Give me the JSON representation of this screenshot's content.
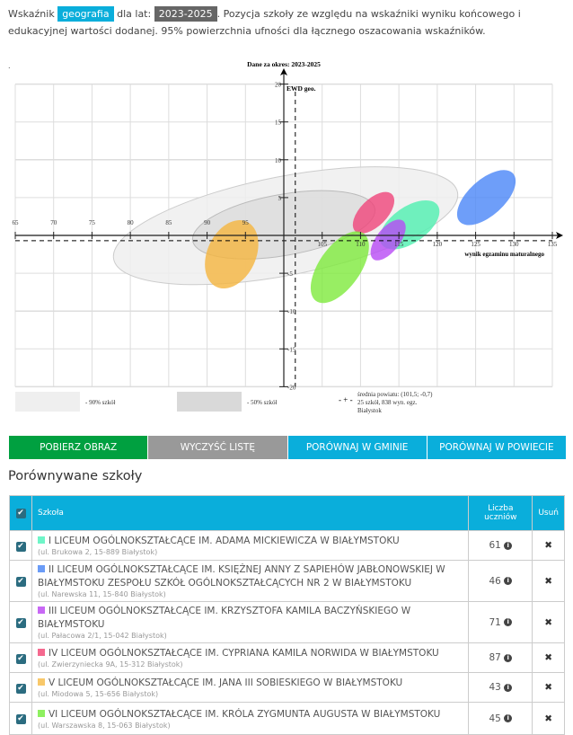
{
  "intro": {
    "p1": "Wskaźnik",
    "subject": "geografia",
    "p2": "dla lat:",
    "years": "2023-2025",
    "p3": ". Pozycja szkoły ze względu na wskaźniki wyniku końcowego i edukacyjnej wartości dodanej. 95% powierzchnia ufności dla łącznego oszacowania wskaźników.",
    "dot": "."
  },
  "chart_data": {
    "type": "scatter",
    "title": "Dane za okres: 2023-2025",
    "xlabel": "wynik egzaminu maturalnego",
    "ylabel": "EWD geo.",
    "xlim": [
      65,
      135
    ],
    "ylim": [
      -20,
      20
    ],
    "xticks": [
      "65",
      "70",
      "75",
      "80",
      "85",
      "90",
      "95",
      "105",
      "110",
      "115",
      "120",
      "125",
      "130",
      "135"
    ],
    "yticks": [
      "20",
      "15",
      "10",
      "5",
      "-5",
      "-10",
      "-15",
      "-20"
    ],
    "grid": true,
    "mean": {
      "x": 101.5,
      "y": -0.7
    },
    "bands": [
      {
        "name": "- 90% szkół",
        "x": 100,
        "y": 1.4,
        "color": "#efefef"
      },
      {
        "name": "- 50% szkół",
        "x": 100,
        "y": 1.4,
        "color": "#d9d9d9"
      }
    ],
    "legend_mean": [
      "średnia powiatu: (101,5; -0,7)",
      "25 szkół, 838 wyn. egz.",
      "Białystok"
    ],
    "series": [
      {
        "school": "I",
        "x": 116.4,
        "y": 1.4,
        "color": "#4ff0b0"
      },
      {
        "school": "II",
        "x": 126.4,
        "y": 5.0,
        "color": "#4a86f7"
      },
      {
        "school": "III",
        "x": 113.6,
        "y": -0.6,
        "color": "#b84af5"
      },
      {
        "school": "IV",
        "x": 111.7,
        "y": 3.0,
        "color": "#f0457a"
      },
      {
        "school": "V",
        "x": 93.2,
        "y": -2.5,
        "color": "#f5b53e"
      },
      {
        "school": "VI",
        "x": 107.3,
        "y": -4.2,
        "color": "#7eea3c"
      }
    ]
  },
  "buttons": [
    {
      "label": "POBIERZ OBRAZ",
      "color": "#00a040"
    },
    {
      "label": "WYCZYŚĆ LISTĘ",
      "color": "#999999"
    },
    {
      "label": "PORÓWNAJ W GMINIE",
      "color": "#0aaedb"
    },
    {
      "label": "PORÓWNAJ W POWIECIE",
      "color": "#0aaedb"
    }
  ],
  "compare": {
    "title": "Porównywane szkoły",
    "col_school": "Szkoła",
    "col_count": "Liczba uczniów",
    "col_remove": "Usuń",
    "rows": [
      {
        "name": "I LICEUM OGÓLNOKSZTAŁCĄCE IM. ADAMA MICKIEWICZA W BIAŁYMSTOKU",
        "addr": "(ul. Brukowa 2, 15-889 Białystok)",
        "count": "61",
        "color": "#6ff5c8"
      },
      {
        "name": "II LICEUM OGÓLNOKSZTAŁCĄCE IM. KSIĘŻNEJ ANNY Z SAPIEHÓW JABŁONOWSKIEJ W BIAŁYMSTOKU ZESPOŁU SZKÓŁ OGÓLNOKSZTAŁCĄCYCH NR 2 W BIAŁYMSTOKU",
        "addr": "(ul. Narewska 11, 15-840 Białystok)",
        "count": "46",
        "color": "#6b9cf7"
      },
      {
        "name": "III LICEUM OGÓLNOKSZTAŁCĄCE IM. KRZYSZTOFA KAMILA BACZYŃSKIEGO W BIAŁYMSTOKU",
        "addr": "(ul. Pałacowa 2/1, 15-042 Białystok)",
        "count": "71",
        "color": "#c868f5"
      },
      {
        "name": "IV LICEUM OGÓLNOKSZTAŁCĄCE IM. CYPRIANA KAMILA NORWIDA W BIAŁYMSTOKU",
        "addr": "(ul. Zwierzyniecka 9A, 15-312 Białystok)",
        "count": "87",
        "color": "#f5698f"
      },
      {
        "name": "V LICEUM OGÓLNOKSZTAŁCĄCE IM. JANA III SOBIESKIEGO W BIAŁYMSTOKU",
        "addr": "(ul. Miodowa 5, 15-656 Białystok)",
        "count": "43",
        "color": "#f8c86a"
      },
      {
        "name": "VI LICEUM OGÓLNOKSZTAŁCĄCE IM. KRÓLA ZYGMUNTA AUGUSTA W BIAŁYMSTOKU",
        "addr": "(ul. Warszawska 8, 15-063 Białystok)",
        "count": "45",
        "color": "#8ef060"
      }
    ]
  }
}
